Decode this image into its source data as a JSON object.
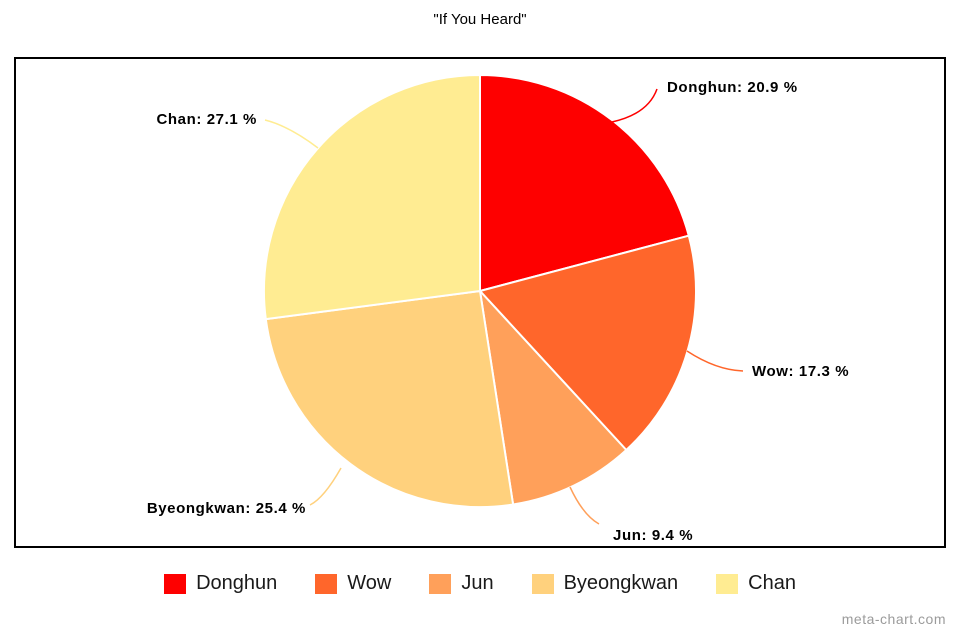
{
  "title": "\"If You Heard\"",
  "watermark": "meta-chart.com",
  "chart_data": {
    "type": "pie",
    "title": "\"If You Heard\"",
    "categories": [
      "Donghun",
      "Wow",
      "Jun",
      "Byeongkwan",
      "Chan"
    ],
    "values": [
      20.9,
      17.3,
      9.4,
      25.4,
      27.1
    ],
    "unit": "%",
    "colors": [
      "#FE0000",
      "#FF662B",
      "#FFA05A",
      "#FFD17D",
      "#FFEC92"
    ],
    "slice_labels": [
      "Donghun: 20.9 %",
      "Wow: 17.3 %",
      "Jun: 9.4 %",
      "Byeongkwan: 25.4 %",
      "Chan: 27.1 %"
    ],
    "legend": [
      "Donghun",
      "Wow",
      "Jun",
      "Byeongkwan",
      "Chan"
    ],
    "legend_position": "bottom",
    "start_angle_deg": 0,
    "direction": "clockwise",
    "slice_border_color": "#FFFFFF"
  }
}
